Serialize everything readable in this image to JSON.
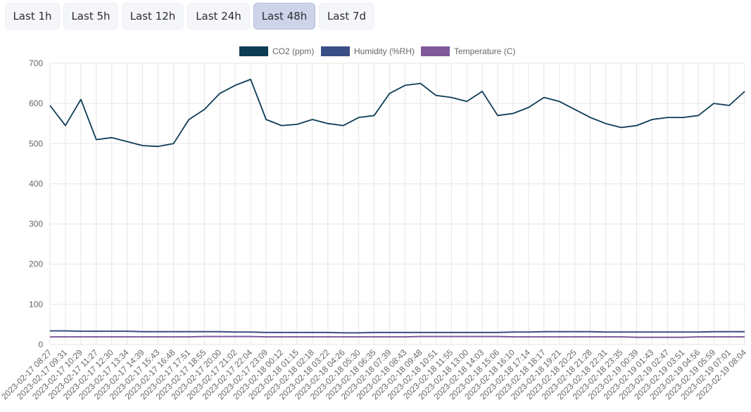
{
  "range_selector": {
    "buttons": [
      {
        "label": "Last 1h",
        "active": false
      },
      {
        "label": "Last 5h",
        "active": false
      },
      {
        "label": "Last 12h",
        "active": false
      },
      {
        "label": "Last 24h",
        "active": false
      },
      {
        "label": "Last 48h",
        "active": true
      },
      {
        "label": "Last 7d",
        "active": false
      }
    ]
  },
  "colors": {
    "co2": "#0d3c55",
    "humidity": "#3a4e86",
    "temperature": "#7e5a9b",
    "grid": "#e5e5e5",
    "axis_text": "#666666"
  },
  "chart_data": {
    "type": "line",
    "title": "",
    "xlabel": "",
    "ylabel": "",
    "ylim": [
      0,
      700
    ],
    "y_ticks": [
      0,
      100,
      200,
      300,
      400,
      500,
      600,
      700
    ],
    "grid": true,
    "legend_position": "top-center",
    "categories": [
      "2023-02-17 08:27",
      "2023-02-17 09:31",
      "2023-02-17 10:29",
      "2023-02-17 11:27",
      "2023-02-17 12:30",
      "2023-02-17 13:34",
      "2023-02-17 14:39",
      "2023-02-17 15:43",
      "2023-02-17 16:48",
      "2023-02-17 17:51",
      "2023-02-17 18:55",
      "2023-02-17 20:00",
      "2023-02-17 21:02",
      "2023-02-17 22:04",
      "2023-02-17 23:09",
      "2023-02-18 00:12",
      "2023-02-18 01:15",
      "2023-02-18 02:18",
      "2023-02-18 03:22",
      "2023-02-18 04:26",
      "2023-02-18 05:30",
      "2023-02-18 06:35",
      "2023-02-18 07:39",
      "2023-02-18 08:43",
      "2023-02-18 09:48",
      "2023-02-18 10:51",
      "2023-02-18 11:55",
      "2023-02-18 13:00",
      "2023-02-18 14:03",
      "2023-02-18 15:06",
      "2023-02-18 16:10",
      "2023-02-18 17:14",
      "2023-02-18 18:17",
      "2023-02-18 19:21",
      "2023-02-18 20:25",
      "2023-02-18 21:28",
      "2023-02-18 22:31",
      "2023-02-18 23:35",
      "2023-02-19 00:39",
      "2023-02-19 01:43",
      "2023-02-19 02:47",
      "2023-02-19 03:51",
      "2023-02-19 04:56",
      "2023-02-19 05:59",
      "2023-02-19 07:01",
      "2023-02-19 08:04"
    ],
    "series": [
      {
        "name": "CO2 (ppm)",
        "values": [
          595,
          545,
          610,
          510,
          515,
          505,
          495,
          493,
          500,
          560,
          585,
          625,
          645,
          660,
          560,
          545,
          548,
          560,
          550,
          545,
          565,
          570,
          625,
          645,
          650,
          620,
          615,
          605,
          630,
          570,
          575,
          590,
          615,
          605,
          585,
          565,
          550,
          540,
          545,
          560,
          565,
          565,
          570,
          600,
          595,
          630
        ]
      },
      {
        "name": "Humidity (%RH)",
        "values": [
          34,
          34,
          33,
          33,
          33,
          33,
          32,
          32,
          32,
          32,
          32,
          32,
          31,
          31,
          30,
          30,
          30,
          30,
          30,
          29,
          29,
          30,
          30,
          30,
          30,
          30,
          30,
          30,
          30,
          30,
          31,
          31,
          32,
          32,
          32,
          32,
          31,
          31,
          31,
          31,
          31,
          31,
          31,
          32,
          32,
          32
        ]
      },
      {
        "name": "Temperature (C)",
        "values": [
          19,
          19,
          19,
          19,
          19,
          19,
          19,
          19,
          19,
          19,
          20,
          20,
          20,
          20,
          19,
          19,
          19,
          19,
          19,
          19,
          19,
          19,
          19,
          19,
          20,
          20,
          20,
          20,
          20,
          20,
          19,
          19,
          19,
          19,
          19,
          19,
          19,
          19,
          18,
          18,
          18,
          18,
          19,
          19,
          19,
          19
        ]
      }
    ]
  }
}
